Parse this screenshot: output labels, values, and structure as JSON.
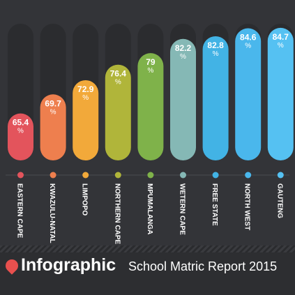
{
  "footer": {
    "brand": "Infographic",
    "subtitle": "School Matric Report 2015"
  },
  "chart_data": {
    "type": "bar",
    "title": "School Matric Report 2015",
    "categories": [
      "EASTERN CAPE",
      "KWAZULU-NATAL",
      "LIMPOPO",
      "NORTHERN CAPE",
      "MPUMALANGA",
      "WETERN CAPE",
      "FREE STATE",
      "NORTH WEST",
      "GAUTENG"
    ],
    "values": [
      65.4,
      69.7,
      72.9,
      76.4,
      79,
      82.2,
      82.8,
      84.6,
      84.7
    ],
    "value_labels": [
      "65.4",
      "69.7",
      "72.9",
      "76.4",
      "79",
      "82.2",
      "82.8",
      "84.6",
      "84.7"
    ],
    "unit": "%",
    "colors": [
      "#e3545c",
      "#ee7f4e",
      "#f2a93a",
      "#b0b53a",
      "#7fb24a",
      "#85b8b5",
      "#42b3e5",
      "#4ab7ec",
      "#55c1f2"
    ],
    "track_color": "#2b2c2f",
    "ylim": [
      60,
      85
    ],
    "grid": false,
    "legend": "none"
  }
}
